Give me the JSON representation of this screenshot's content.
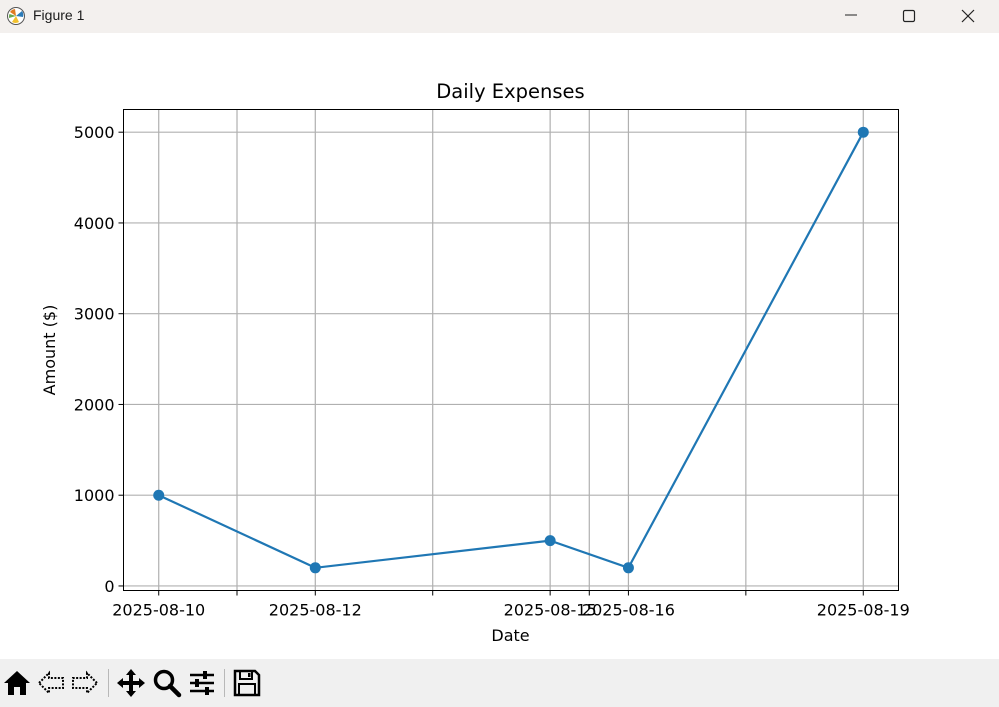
{
  "window": {
    "title": "Figure 1",
    "icons": [
      "matplotlib-logo-icon",
      "minimize-icon",
      "maximize-icon",
      "close-icon"
    ]
  },
  "toolbar": {
    "icons": [
      "home-icon",
      "back-arrow-icon",
      "forward-arrow-icon",
      "pan-move-icon",
      "zoom-magnifier-icon",
      "configure-subplots-icon",
      "save-floppy-icon"
    ]
  },
  "chart_data": {
    "type": "line",
    "title": "Daily Expenses",
    "xlabel": "Date",
    "ylabel": "Amount ($)",
    "x": [
      "2025-08-10",
      "2025-08-12",
      "2025-08-15",
      "2025-08-16",
      "2025-08-19"
    ],
    "series": [
      {
        "values": [
          1000,
          200,
          500,
          200,
          5000
        ],
        "color": "#1f77b4",
        "marker": "circle"
      }
    ],
    "yticks": [
      0,
      1000,
      2000,
      3000,
      4000,
      5000
    ],
    "ylim": [
      -50,
      5250
    ],
    "grid": true
  }
}
